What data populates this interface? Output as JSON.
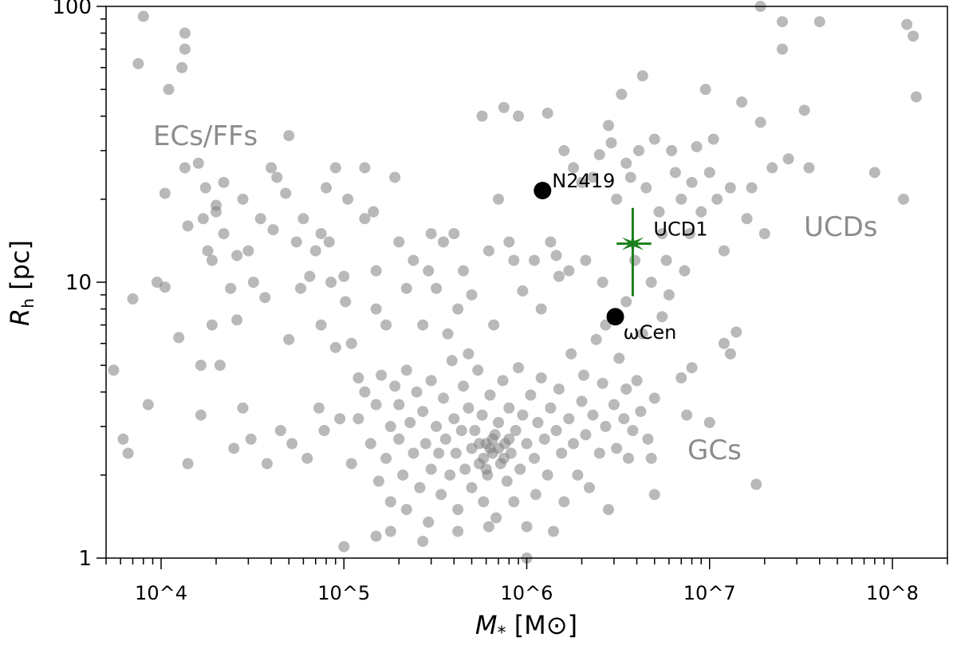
{
  "chart_data": {
    "type": "scatter",
    "title": "",
    "xlabel": "M* [M⊙]",
    "ylabel": "R_h [pc]",
    "xscale": "log",
    "yscale": "log",
    "xlim": [
      5000,
      200000000
    ],
    "ylim": [
      1,
      100
    ],
    "grid": false,
    "x_tick_labels": [
      "10^4",
      "10^5",
      "10^6",
      "10^7",
      "10^8"
    ],
    "x_tick_values": [
      10000,
      100000,
      1000000,
      10000000,
      100000000
    ],
    "y_tick_labels": [
      "1",
      "10",
      "100"
    ],
    "y_tick_values": [
      1,
      10,
      100
    ],
    "point_color": "#808080",
    "region_labels": [
      "ECs/FFs",
      "UCDs",
      "GCs"
    ],
    "series": [
      {
        "points": [
          [
            5500,
            4.8
          ],
          [
            6200,
            2.7
          ],
          [
            6600,
            2.4
          ],
          [
            7000,
            8.7
          ],
          [
            7500,
            62
          ],
          [
            8000,
            92
          ],
          [
            8500,
            3.6
          ],
          [
            9500,
            10
          ],
          [
            10500,
            21
          ],
          [
            10500,
            9.6
          ],
          [
            11000,
            50
          ],
          [
            12500,
            6.3
          ],
          [
            13000,
            60
          ],
          [
            13500,
            80
          ],
          [
            13500,
            70
          ],
          [
            13500,
            26
          ],
          [
            14000,
            16
          ],
          [
            14000,
            2.2
          ],
          [
            16000,
            27
          ],
          [
            16500,
            3.3
          ],
          [
            16500,
            5
          ],
          [
            17000,
            17
          ],
          [
            17500,
            22
          ],
          [
            18000,
            13
          ],
          [
            19000,
            12
          ],
          [
            19000,
            7
          ],
          [
            20000,
            19
          ],
          [
            20000,
            18
          ],
          [
            21000,
            5
          ],
          [
            22000,
            15
          ],
          [
            22000,
            23
          ],
          [
            24000,
            9.5
          ],
          [
            25000,
            2.5
          ],
          [
            26000,
            12.5
          ],
          [
            26000,
            7.3
          ],
          [
            28000,
            3.5
          ],
          [
            28000,
            20
          ],
          [
            30000,
            13
          ],
          [
            31000,
            2.7
          ],
          [
            32000,
            10
          ],
          [
            35000,
            17
          ],
          [
            37000,
            8.8
          ],
          [
            38000,
            2.2
          ],
          [
            40000,
            26
          ],
          [
            41000,
            15.5
          ],
          [
            43000,
            24
          ],
          [
            45000,
            2.9
          ],
          [
            48000,
            21
          ],
          [
            50000,
            6.2
          ],
          [
            50000,
            34
          ],
          [
            52000,
            2.6
          ],
          [
            55000,
            14
          ],
          [
            58000,
            9.5
          ],
          [
            60000,
            17
          ],
          [
            63000,
            2.3
          ],
          [
            65000,
            10.5
          ],
          [
            70000,
            13
          ],
          [
            73000,
            3.5
          ],
          [
            75000,
            15
          ],
          [
            75000,
            7
          ],
          [
            78000,
            2.9
          ],
          [
            80000,
            22
          ],
          [
            83000,
            14
          ],
          [
            85000,
            10
          ],
          [
            90000,
            26
          ],
          [
            90000,
            5.8
          ],
          [
            95000,
            3.2
          ],
          [
            100000,
            10.5
          ],
          [
            102000,
            8.5
          ],
          [
            105000,
            20
          ],
          [
            110000,
            6
          ],
          [
            110000,
            2.2
          ],
          [
            120000,
            4.5
          ],
          [
            130000,
            26
          ],
          [
            130000,
            17
          ],
          [
            145000,
            18
          ],
          [
            150000,
            11
          ],
          [
            150000,
            8
          ],
          [
            170000,
            7
          ],
          [
            190000,
            24
          ],
          [
            200000,
            14
          ],
          [
            220000,
            9.5
          ],
          [
            240000,
            12
          ],
          [
            270000,
            7
          ],
          [
            290000,
            11
          ],
          [
            300000,
            15
          ],
          [
            320000,
            9.5
          ],
          [
            350000,
            14
          ],
          [
            370000,
            6.5
          ],
          [
            400000,
            15
          ],
          [
            420000,
            8
          ],
          [
            450000,
            11
          ],
          [
            480000,
            5.5
          ],
          [
            500000,
            9
          ],
          [
            570000,
            40
          ],
          [
            620000,
            13
          ],
          [
            660000,
            7
          ],
          [
            700000,
            20
          ],
          [
            750000,
            43
          ],
          [
            800000,
            14
          ],
          [
            850000,
            12
          ],
          [
            900000,
            40
          ],
          [
            950000,
            9.3
          ],
          [
            1100000,
            12
          ],
          [
            1200000,
            8
          ],
          [
            1300000,
            41
          ],
          [
            1350000,
            14
          ],
          [
            1450000,
            12.5
          ],
          [
            1500000,
            10.5
          ],
          [
            1600000,
            30
          ],
          [
            1700000,
            11
          ],
          [
            1800000,
            26
          ],
          [
            2000000,
            23
          ],
          [
            2100000,
            12
          ],
          [
            2300000,
            24
          ],
          [
            2500000,
            29
          ],
          [
            2600000,
            10
          ],
          [
            2800000,
            37
          ],
          [
            2900000,
            32
          ],
          [
            3100000,
            20
          ],
          [
            3300000,
            48
          ],
          [
            3500000,
            27
          ],
          [
            3700000,
            24
          ],
          [
            3900000,
            12
          ],
          [
            4100000,
            30
          ],
          [
            4300000,
            56
          ],
          [
            4500000,
            22
          ],
          [
            4800000,
            10
          ],
          [
            5000000,
            33
          ],
          [
            5300000,
            18
          ],
          [
            5500000,
            15
          ],
          [
            5800000,
            12
          ],
          [
            6200000,
            30
          ],
          [
            6500000,
            25
          ],
          [
            7000000,
            20
          ],
          [
            7300000,
            11
          ],
          [
            7800000,
            15
          ],
          [
            8000000,
            23
          ],
          [
            8500000,
            31
          ],
          [
            9000000,
            18
          ],
          [
            9500000,
            50
          ],
          [
            10000000,
            25
          ],
          [
            10500000,
            33
          ],
          [
            11000000,
            20
          ],
          [
            12000000,
            13
          ],
          [
            13000000,
            22
          ],
          [
            14000000,
            6.6
          ],
          [
            15000000,
            45
          ],
          [
            16000000,
            17
          ],
          [
            17000000,
            22
          ],
          [
            19000000,
            38
          ],
          [
            20000000,
            15
          ],
          [
            22000000,
            26
          ],
          [
            25000000,
            70
          ],
          [
            25000000,
            88
          ],
          [
            27000000,
            28
          ],
          [
            33000000,
            42
          ],
          [
            35000000,
            26
          ],
          [
            40000000,
            88
          ],
          [
            80000000,
            25
          ],
          [
            115000000,
            20
          ],
          [
            120000000,
            86
          ],
          [
            130000000,
            78
          ],
          [
            135000000,
            47
          ],
          [
            18000000,
            1.85
          ],
          [
            19000000,
            100
          ],
          [
            4800000,
            2.3
          ],
          [
            5000000,
            1.7
          ],
          [
            7500000,
            3.3
          ],
          [
            8000000,
            4.9
          ],
          [
            10000000,
            3.1
          ],
          [
            12000000,
            6
          ],
          [
            13000000,
            5.5
          ],
          [
            7000000,
            4.5
          ],
          [
            120000,
            3.2
          ],
          [
            130000,
            4
          ],
          [
            140000,
            2.6
          ],
          [
            150000,
            3.6
          ],
          [
            155000,
            1.9
          ],
          [
            160000,
            4.6
          ],
          [
            170000,
            2.3
          ],
          [
            180000,
            3
          ],
          [
            180000,
            1.6
          ],
          [
            190000,
            4.2
          ],
          [
            200000,
            2.7
          ],
          [
            200000,
            3.6
          ],
          [
            210000,
            2
          ],
          [
            220000,
            4.8
          ],
          [
            220000,
            1.5
          ],
          [
            230000,
            3.1
          ],
          [
            240000,
            2.4
          ],
          [
            250000,
            4
          ],
          [
            260000,
            1.8
          ],
          [
            270000,
            3.4
          ],
          [
            280000,
            2.6
          ],
          [
            290000,
            1.35
          ],
          [
            300000,
            2.1
          ],
          [
            300000,
            4.4
          ],
          [
            320000,
            3
          ],
          [
            330000,
            2.4
          ],
          [
            340000,
            1.7
          ],
          [
            350000,
            3.8
          ],
          [
            360000,
            2.7
          ],
          [
            380000,
            2
          ],
          [
            390000,
            5.2
          ],
          [
            400000,
            3.2
          ],
          [
            410000,
            2.4
          ],
          [
            420000,
            1.5
          ],
          [
            440000,
            2.9
          ],
          [
            450000,
            4.2
          ],
          [
            460000,
            2.1
          ],
          [
            480000,
            3.5
          ],
          [
            500000,
            2.5
          ],
          [
            500000,
            1.8
          ],
          [
            520000,
            2.9
          ],
          [
            540000,
            4.8
          ],
          [
            550000,
            2.2
          ],
          [
            570000,
            3.3
          ],
          [
            580000,
            1.6
          ],
          [
            600000,
            2.6
          ],
          [
            610000,
            2
          ],
          [
            630000,
            3.9
          ],
          [
            650000,
            2.4
          ],
          [
            670000,
            2.8
          ],
          [
            680000,
            1.4
          ],
          [
            700000,
            3.1
          ],
          [
            720000,
            2.2
          ],
          [
            740000,
            4.4
          ],
          [
            760000,
            2.6
          ],
          [
            780000,
            1.9
          ],
          [
            800000,
            3.5
          ],
          [
            820000,
            2.4
          ],
          [
            850000,
            1.6
          ],
          [
            870000,
            2.9
          ],
          [
            900000,
            4.9
          ],
          [
            920000,
            2.1
          ],
          [
            950000,
            3.3
          ],
          [
            1000000,
            2.6
          ],
          [
            1000000,
            1.3
          ],
          [
            1050000,
            3.9
          ],
          [
            1100000,
            2.3
          ],
          [
            1120000,
            1.7
          ],
          [
            1150000,
            3.1
          ],
          [
            1200000,
            4.5
          ],
          [
            1250000,
            2.7
          ],
          [
            1300000,
            2
          ],
          [
            1350000,
            3.5
          ],
          [
            1400000,
            1.25
          ],
          [
            1450000,
            2.9
          ],
          [
            1500000,
            4.1
          ],
          [
            1550000,
            2.4
          ],
          [
            1600000,
            1.6
          ],
          [
            1700000,
            3.2
          ],
          [
            1750000,
            5.5
          ],
          [
            1800000,
            2.6
          ],
          [
            1900000,
            2
          ],
          [
            2000000,
            3.7
          ],
          [
            2050000,
            4.6
          ],
          [
            2100000,
            2.8
          ],
          [
            2200000,
            1.8
          ],
          [
            2300000,
            3.3
          ],
          [
            2400000,
            6.2
          ],
          [
            2500000,
            2.4
          ],
          [
            2600000,
            4.3
          ],
          [
            2700000,
            3
          ],
          [
            2800000,
            1.5
          ],
          [
            3000000,
            3.6
          ],
          [
            3100000,
            2.5
          ],
          [
            3200000,
            5.3
          ],
          [
            3400000,
            3.2
          ],
          [
            3500000,
            4.1
          ],
          [
            3600000,
            2.3
          ],
          [
            3800000,
            2.9
          ],
          [
            4000000,
            4.4
          ],
          [
            4200000,
            3.4
          ],
          [
            4300000,
            6.5
          ],
          [
            4600000,
            2.7
          ],
          [
            5000000,
            3.8
          ],
          [
            2700000,
            7
          ],
          [
            3500000,
            8.5
          ],
          [
            5500000,
            7.5
          ],
          [
            6000000,
            9
          ],
          [
            100000,
            1.1
          ],
          [
            150000,
            1.2
          ],
          [
            180000,
            1.25
          ],
          [
            270000,
            1.15
          ],
          [
            420000,
            1.25
          ],
          [
            620000,
            1.3
          ],
          [
            1000000,
            1
          ],
          [
            630000,
            2.5
          ],
          [
            580000,
            2.3
          ],
          [
            700000,
            2.5
          ],
          [
            650000,
            2.7
          ],
          [
            550000,
            2.6
          ],
          [
            750000,
            2.3
          ],
          [
            600000,
            2.1
          ],
          [
            800000,
            2.7
          ]
        ]
      }
    ],
    "highlighted": [
      {
        "name": "N2419",
        "mass": 1220000,
        "rh": 21.5,
        "color": "#000000"
      },
      {
        "name": "ωCen",
        "mass": 3050000,
        "rh": 7.5,
        "color": "#000000"
      },
      {
        "name": "UCD1",
        "mass": 3800000,
        "rh": 13.8,
        "mass_err": [
          3100000,
          4800000
        ],
        "rh_err": [
          8.9,
          18.6
        ],
        "color": "#1a7f1a",
        "marker": "star"
      }
    ]
  }
}
